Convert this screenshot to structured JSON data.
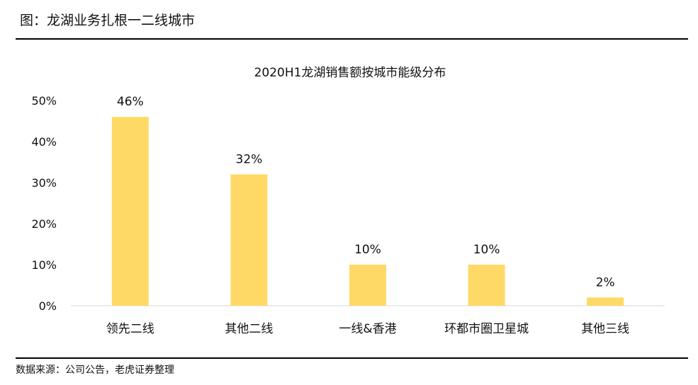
{
  "header": {
    "title": "图：龙湖业务扎根一二线城市"
  },
  "footer": {
    "source": "数据来源：公司公告，老虎证券整理"
  },
  "colors": {
    "bar": "#FFD966",
    "axis": "#D9D9D9",
    "rule": "#000000"
  },
  "chart_data": {
    "type": "bar",
    "title": "2020H1龙湖销售额按城市能级分布",
    "categories": [
      "领先二线",
      "其他二线",
      "一线&香港",
      "环都市圈卫星城",
      "其他三线"
    ],
    "values": [
      46,
      32,
      10,
      10,
      2
    ],
    "data_labels": [
      "46%",
      "32%",
      "10%",
      "10%",
      "2%"
    ],
    "yticks": [
      0,
      10,
      20,
      30,
      40,
      50
    ],
    "ytick_labels": [
      "0%",
      "10%",
      "20%",
      "30%",
      "40%",
      "50%"
    ],
    "ylim": [
      0,
      50
    ],
    "xlabel": "",
    "ylabel": "",
    "grid": false,
    "legend": "none"
  }
}
